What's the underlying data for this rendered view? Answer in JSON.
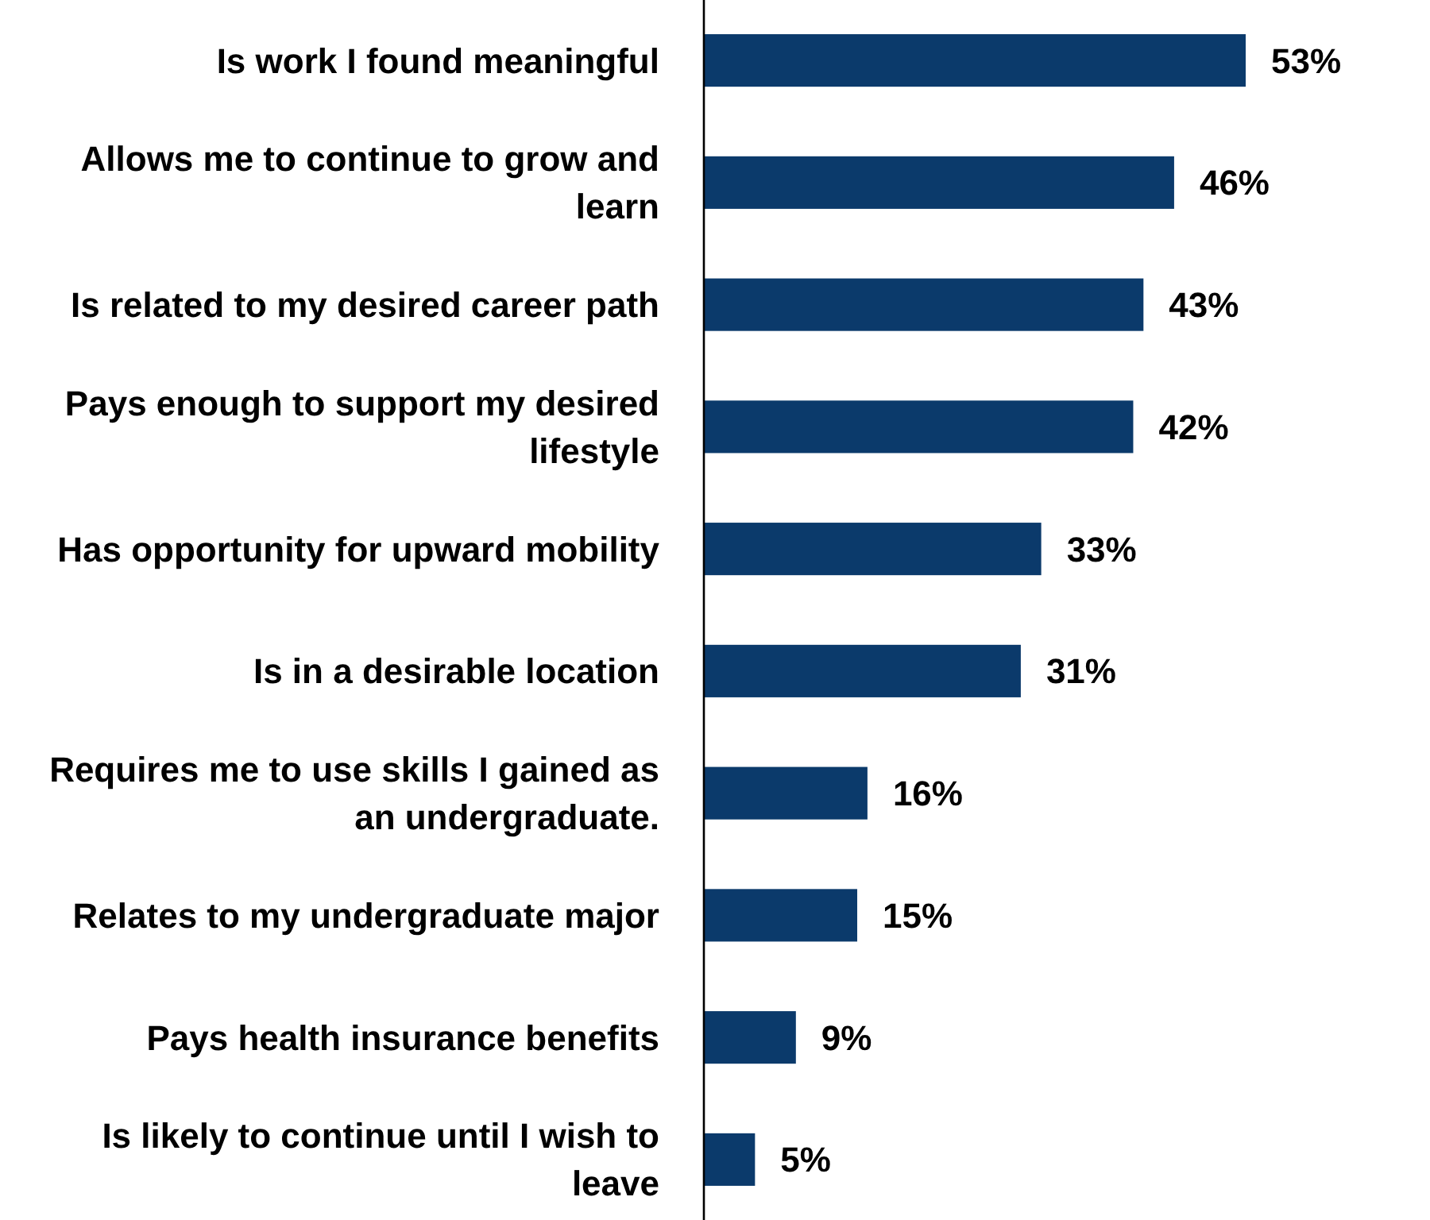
{
  "chart_data": {
    "type": "bar",
    "orientation": "horizontal",
    "categories": [
      "Is work I found meaningful",
      "Allows me to continue to grow and learn",
      "Is related to my desired career path",
      "Pays enough to support my desired lifestyle",
      "Has opportunity for upward mobility",
      "Is in a desirable location",
      "Requires me to use skills I gained as an undergraduate.",
      "Relates to my undergraduate major",
      "Pays health insurance benefits",
      "Is likely to continue until I wish to leave"
    ],
    "values": [
      53,
      46,
      43,
      42,
      33,
      31,
      16,
      15,
      9,
      5
    ],
    "value_labels": [
      "53%",
      "46%",
      "43%",
      "42%",
      "33%",
      "31%",
      "16%",
      "15%",
      "9%",
      "5%"
    ],
    "color": "#0b3a6b"
  }
}
